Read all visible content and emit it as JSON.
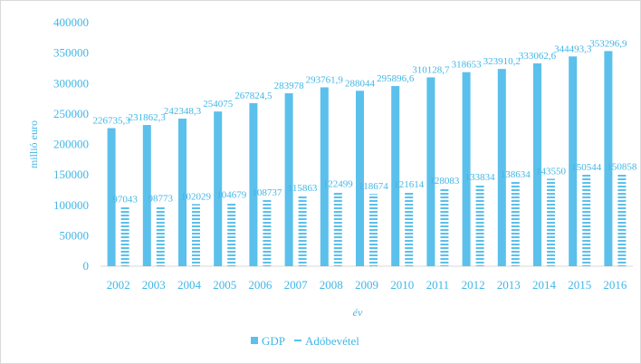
{
  "chart_data": {
    "type": "bar",
    "title": "",
    "xlabel": "év",
    "ylabel": "millió euro",
    "ylim": [
      0,
      400000
    ],
    "yticks": [
      "0",
      "50000",
      "100000",
      "150000",
      "200000",
      "250000",
      "300000",
      "350000",
      "400000"
    ],
    "categories": [
      "2002",
      "2003",
      "2004",
      "2005",
      "2006",
      "2007",
      "2008",
      "2009",
      "2010",
      "2011",
      "2012",
      "2013",
      "2014",
      "2015",
      "2016"
    ],
    "series": [
      {
        "name": "GDP",
        "color": "#5bc0eb",
        "style": "solid",
        "values": [
          226735.3,
          231862.3,
          242348.3,
          254075,
          267824.5,
          283978,
          293761.9,
          288044,
          295896.6,
          310128.7,
          318653,
          323910.2,
          333062.6,
          344493.3,
          353296.9
        ],
        "labels": [
          "226735,3",
          "231862,3",
          "242348,3",
          "254075",
          "267824,5",
          "283978",
          "293761,9",
          "288044",
          "295896,6",
          "310128,7",
          "318653",
          "323910,2",
          "333062,6",
          "344493,3",
          "353296,9"
        ]
      },
      {
        "name": "Adóbevétel",
        "color": "#5bc0eb",
        "style": "dashed",
        "values": [
          97043,
          98773,
          102029,
          104679,
          108737,
          115863,
          122499,
          118674,
          121614,
          128083,
          133834,
          138634,
          143550,
          150544,
          150858
        ],
        "labels": [
          "97043",
          "98773",
          "102029",
          "104679",
          "108737",
          "115863",
          "122499",
          "118674",
          "121614",
          "128083",
          "133834",
          "138634",
          "143550",
          "150544",
          "150858"
        ]
      }
    ],
    "grid": false,
    "legend": "bottom-center"
  }
}
